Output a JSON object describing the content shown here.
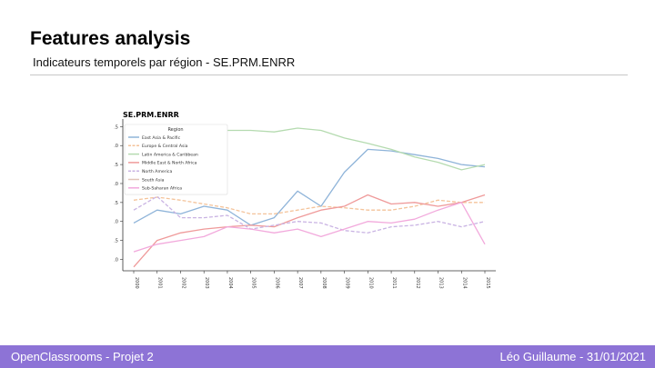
{
  "slide": {
    "title": "Features analysis",
    "subtitle": "Indicateurs temporels par région - SE.PRM.ENRR"
  },
  "footer": {
    "left": "OpenClassrooms - Projet 2",
    "right": "Léo Guillaume - 31/01/2021"
  },
  "colors": {
    "footer_bg": "#8d73d6",
    "rule": "#c8c8c8"
  },
  "chart_data": {
    "type": "line",
    "title": "SE.PRM.ENRR",
    "xlabel": "",
    "ylabel": "",
    "x": [
      "2000",
      "2001",
      "2002",
      "2003",
      "2004",
      "2005",
      "2006",
      "2007",
      "2008",
      "2009",
      "2010",
      "2011",
      "2012",
      "2013",
      "2014",
      "2015"
    ],
    "ylim": [
      93.5,
      113.5
    ],
    "yticks": [
      95.0,
      97.5,
      100.0,
      102.5,
      105.0,
      107.5,
      110.0,
      112.5
    ],
    "ytick_labels": [
      "95.0",
      "97.5",
      "100.0",
      "102.5",
      "105.0",
      "107.5",
      "110.0",
      "112.5"
    ],
    "grid": false,
    "legend": {
      "title": "Region",
      "position": "top-left"
    },
    "series": [
      {
        "name": "East Asia & Pacific",
        "color": "#8fb4d9",
        "dash": "solid",
        "values": [
          99.8,
          101.5,
          101.0,
          102.0,
          101.5,
          99.5,
          100.5,
          104.0,
          102.0,
          106.5,
          109.5,
          109.3,
          108.8,
          108.3,
          107.5,
          107.2
        ]
      },
      {
        "name": "Europe & Central Asia",
        "color": "#f4c39a",
        "dash": "dashed",
        "values": [
          102.8,
          103.2,
          102.8,
          102.3,
          101.8,
          101.0,
          101.0,
          101.5,
          102.0,
          101.8,
          101.5,
          101.5,
          102.0,
          102.8,
          102.5,
          102.5
        ]
      },
      {
        "name": "Latin America & Caribbean",
        "color": "#b5dbb0",
        "dash": "solid",
        "values": [
          null,
          null,
          null,
          null,
          112.0,
          112.0,
          111.8,
          112.3,
          112.0,
          111.0,
          110.3,
          109.5,
          108.5,
          107.8,
          106.8,
          107.5
        ]
      },
      {
        "name": "Middle East & North Africa",
        "color": "#ef9a9a",
        "dash": "solid",
        "values": [
          94.0,
          97.5,
          98.5,
          99.0,
          99.3,
          99.5,
          99.3,
          100.5,
          101.5,
          102.0,
          103.5,
          102.3,
          102.5,
          102.0,
          102.5,
          103.5
        ]
      },
      {
        "name": "North America",
        "color": "#c9b3e3",
        "dash": "dashed",
        "values": [
          101.5,
          103.3,
          100.5,
          100.5,
          100.8,
          99.0,
          99.5,
          100.0,
          99.8,
          98.8,
          98.5,
          99.3,
          99.5,
          100.0,
          99.3,
          100.0
        ]
      },
      {
        "name": "South Asia",
        "color": "#e0c4b8",
        "dash": "solid",
        "values": [
          null,
          null,
          null,
          null,
          null,
          null,
          null,
          null,
          null,
          null,
          null,
          null,
          null,
          null,
          null,
          null
        ]
      },
      {
        "name": "Sub-Saharan Africa",
        "color": "#f2a9dc",
        "dash": "solid",
        "values": [
          96.0,
          97.0,
          97.5,
          98.0,
          99.3,
          99.0,
          98.5,
          99.0,
          98.0,
          99.0,
          100.0,
          99.8,
          100.3,
          101.5,
          102.5,
          97.0
        ]
      }
    ]
  }
}
